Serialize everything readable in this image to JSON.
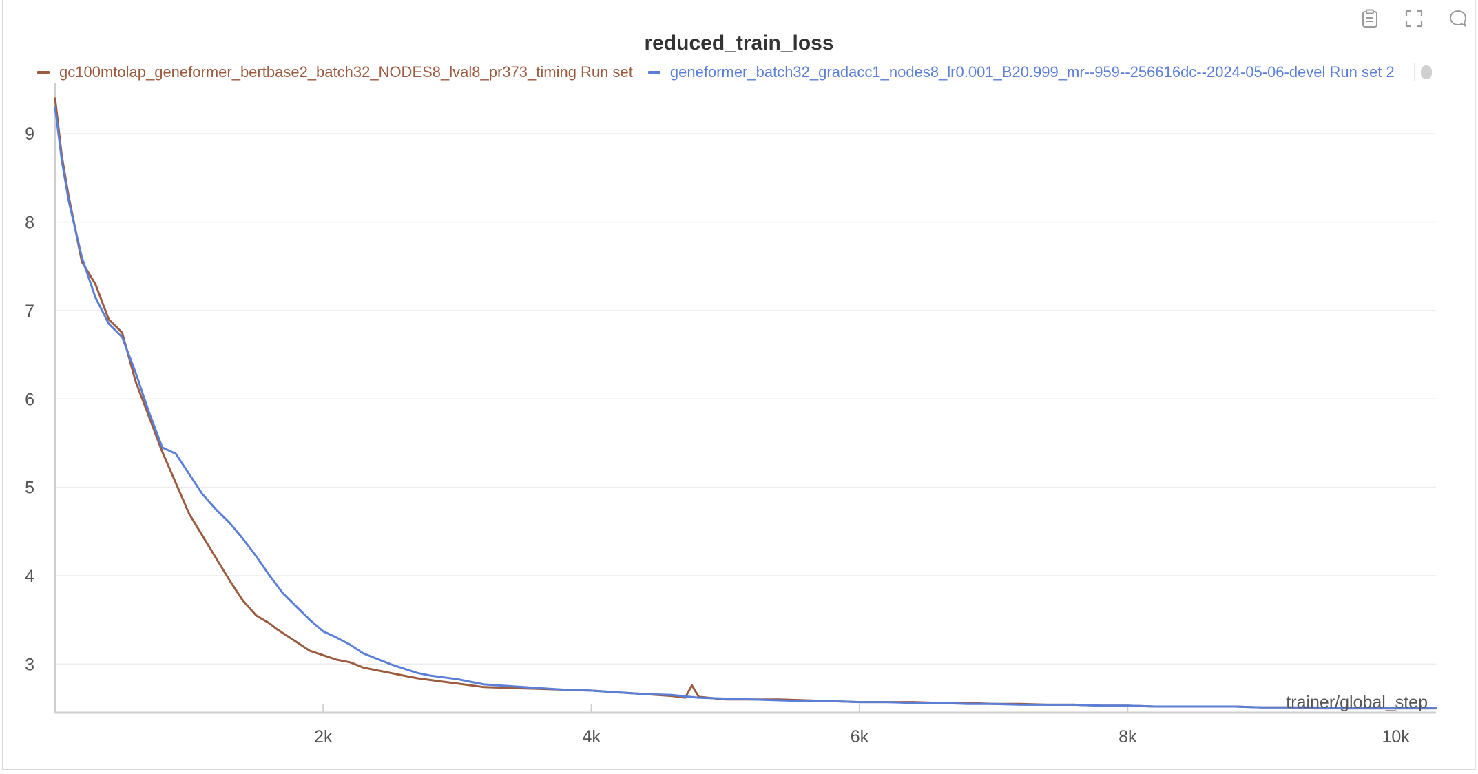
{
  "toolbar": {
    "icons": [
      "clipboard-icon",
      "fullscreen-icon",
      "comment-icon"
    ]
  },
  "colors": {
    "brown": "#9a5b3f",
    "blue": "#5b7fd6",
    "grid": "#ececec",
    "axis": "#cfcfcf"
  },
  "chart_data": {
    "type": "line",
    "title": "reduced_train_loss",
    "xlabel": "trainer/global_step",
    "ylabel": "",
    "xlim": [
      0,
      10300
    ],
    "ylim": [
      2.45,
      9.5
    ],
    "x_ticks": [
      2000,
      4000,
      6000,
      8000,
      10000
    ],
    "x_tick_labels": [
      "2k",
      "4k",
      "6k",
      "8k",
      "10k"
    ],
    "y_ticks": [
      3,
      4,
      5,
      6,
      7,
      8,
      9
    ],
    "y_tick_labels": [
      "3",
      "4",
      "5",
      "6",
      "7",
      "8",
      "9"
    ],
    "grid": true,
    "legend_position": "top-left",
    "series": [
      {
        "name": "gc100mtolap_geneformer_bertbase2_batch32_NODES8_lval8_pr373_timing Run set",
        "color": "#9a5b3f",
        "x": [
          0,
          50,
          100,
          200,
          300,
          400,
          500,
          600,
          700,
          800,
          900,
          1000,
          1100,
          1200,
          1300,
          1400,
          1500,
          1600,
          1650,
          1700,
          1800,
          1900,
          2000,
          2100,
          2200,
          2300,
          2400,
          2500,
          2600,
          2700,
          2800,
          2900,
          3000,
          3100,
          3200,
          3400,
          3600,
          3800,
          4000,
          4200,
          4400,
          4600,
          4700,
          4750,
          4800,
          5000,
          5200,
          5400,
          5600,
          5800,
          6000,
          6200,
          6400,
          6600,
          6800,
          7000,
          7200,
          7400,
          7600,
          7800,
          8000,
          8200,
          8400,
          8600,
          8800,
          9000,
          9200,
          9400,
          9600,
          9800,
          10000,
          10200,
          10300
        ],
        "y": [
          9.4,
          8.75,
          8.3,
          7.55,
          7.3,
          6.9,
          6.75,
          6.2,
          5.8,
          5.4,
          5.05,
          4.7,
          4.45,
          4.2,
          3.95,
          3.72,
          3.55,
          3.46,
          3.4,
          3.35,
          3.25,
          3.15,
          3.1,
          3.05,
          3.02,
          2.96,
          2.93,
          2.9,
          2.87,
          2.84,
          2.82,
          2.8,
          2.78,
          2.76,
          2.74,
          2.73,
          2.72,
          2.71,
          2.7,
          2.68,
          2.66,
          2.64,
          2.62,
          2.76,
          2.63,
          2.6,
          2.6,
          2.6,
          2.59,
          2.58,
          2.57,
          2.57,
          2.57,
          2.56,
          2.56,
          2.55,
          2.55,
          2.54,
          2.54,
          2.53,
          2.53,
          2.52,
          2.52,
          2.52,
          2.52,
          2.51,
          2.51,
          2.5,
          2.5,
          2.5,
          2.5,
          2.5,
          2.5
        ]
      },
      {
        "name": "geneformer_batch32_gradacc1_nodes8_lr0.001_B20.999_mr--959--256616dc--2024-05-06-devel Run set 2",
        "color": "#5b7fd6",
        "x": [
          0,
          50,
          100,
          200,
          300,
          400,
          500,
          600,
          700,
          800,
          900,
          1000,
          1100,
          1200,
          1300,
          1400,
          1500,
          1600,
          1700,
          1800,
          1900,
          2000,
          2100,
          2200,
          2300,
          2400,
          2500,
          2600,
          2700,
          2800,
          2900,
          3000,
          3100,
          3200,
          3400,
          3600,
          3800,
          4000,
          4200,
          4400,
          4600,
          4800,
          5000,
          5200,
          5400,
          5600,
          5800,
          6000,
          6200,
          6400,
          6600,
          6800,
          7000,
          7200,
          7400,
          7600,
          7800,
          8000,
          8200,
          8400,
          8600,
          8800,
          9000,
          9200,
          9400,
          9600,
          9800,
          10000,
          10200,
          10300
        ],
        "y": [
          9.3,
          8.7,
          8.25,
          7.6,
          7.15,
          6.85,
          6.7,
          6.3,
          5.85,
          5.45,
          5.38,
          5.15,
          4.92,
          4.75,
          4.6,
          4.42,
          4.22,
          4.0,
          3.8,
          3.65,
          3.5,
          3.37,
          3.3,
          3.22,
          3.12,
          3.06,
          3.0,
          2.95,
          2.9,
          2.87,
          2.85,
          2.83,
          2.8,
          2.77,
          2.75,
          2.73,
          2.71,
          2.7,
          2.68,
          2.66,
          2.65,
          2.62,
          2.61,
          2.6,
          2.59,
          2.58,
          2.58,
          2.57,
          2.57,
          2.56,
          2.56,
          2.55,
          2.55,
          2.54,
          2.54,
          2.54,
          2.53,
          2.53,
          2.52,
          2.52,
          2.52,
          2.52,
          2.51,
          2.51,
          2.51,
          2.5,
          2.5,
          2.5,
          2.5,
          2.5
        ]
      }
    ]
  }
}
